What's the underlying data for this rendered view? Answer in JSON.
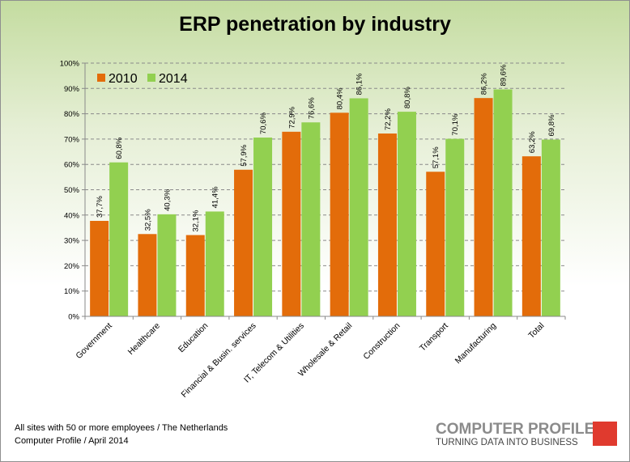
{
  "chart_data": {
    "type": "bar",
    "title": "ERP penetration by industry",
    "categories": [
      "Government",
      "Healthcare",
      "Education",
      "Financial & Busin. services",
      "IT, Telecom & Utilities",
      "Wholesale & Retail",
      "Construction",
      "Transport",
      "Manufacturing",
      "Total"
    ],
    "series": [
      {
        "name": "2010",
        "color": "#e36c0a",
        "values": [
          37.7,
          32.5,
          32.1,
          57.9,
          72.9,
          80.4,
          72.2,
          57.1,
          86.2,
          63.2
        ],
        "labels": [
          "37,7%",
          "32,5%",
          "32,1%",
          "57,9%",
          "72,9%",
          "80,4%",
          "72,2%",
          "57,1%",
          "86,2%",
          "63,2%"
        ]
      },
      {
        "name": "2014",
        "color": "#92d050",
        "values": [
          60.8,
          40.3,
          41.4,
          70.6,
          76.6,
          86.1,
          80.8,
          70.1,
          89.6,
          69.8
        ],
        "labels": [
          "60,8%",
          "40,3%",
          "41,4%",
          "70,6%",
          "76,6%",
          "86,1%",
          "80,8%",
          "70,1%",
          "89,6%",
          "69,8%"
        ]
      }
    ],
    "y_ticks": [
      "0%",
      "10%",
      "20%",
      "30%",
      "40%",
      "50%",
      "60%",
      "70%",
      "80%",
      "90%",
      "100%"
    ],
    "ylim": [
      0,
      100
    ],
    "grid": "horizontal dashed",
    "legend_position": "top-left"
  },
  "footer": {
    "line1": "All sites with 50 or more employees  / The Netherlands",
    "line2": "Computer Profile / April 2014"
  },
  "logo": {
    "name": "COMPUTER PROFILE",
    "tagline": "TURNING DATA INTO BUSINESS"
  }
}
